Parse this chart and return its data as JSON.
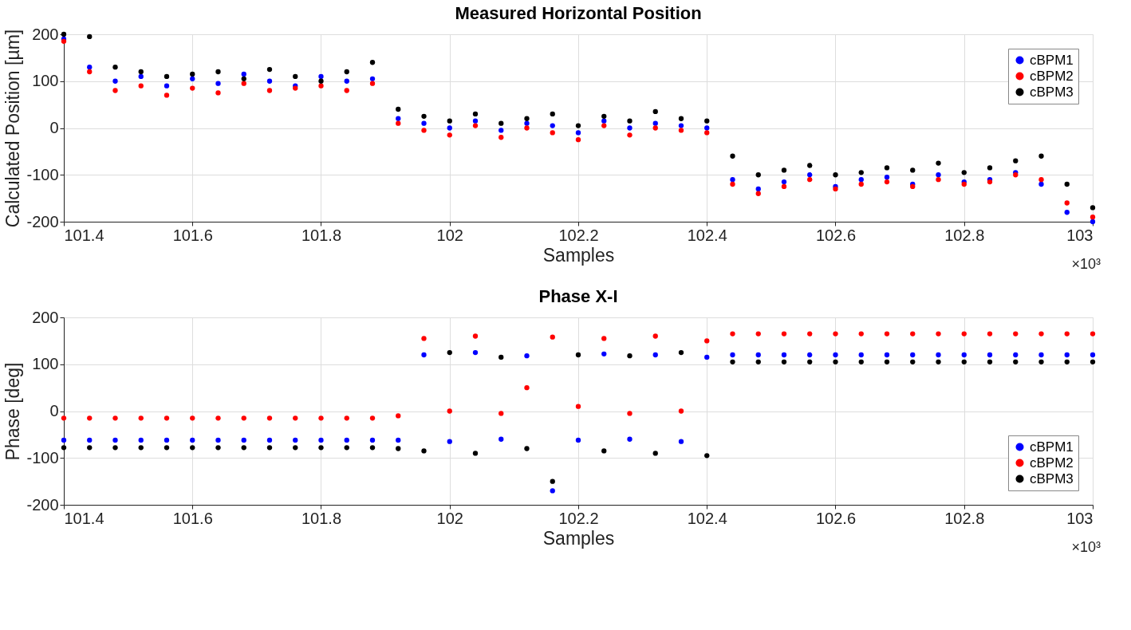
{
  "chart_data": [
    {
      "type": "scatter",
      "title": "Measured Horizontal Position",
      "xlabel": "Samples",
      "ylabel": "Calculated Position [µm]",
      "annotations": [
        "×10³"
      ],
      "x": [
        101.4,
        101.44,
        101.48,
        101.52,
        101.56,
        101.6,
        101.64,
        101.68,
        101.72,
        101.76,
        101.8,
        101.84,
        101.88,
        101.92,
        101.96,
        102,
        102.04,
        102.08,
        102.12,
        102.16,
        102.2,
        102.24,
        102.28,
        102.32,
        102.36,
        102.4,
        102.44,
        102.48,
        102.52,
        102.56,
        102.6,
        102.64,
        102.68,
        102.72,
        102.76,
        102.8,
        102.84,
        102.88,
        102.92,
        102.96,
        103
      ],
      "series": [
        {
          "name": "cBPM1",
          "color": "#0000ff",
          "values": [
            190,
            130,
            100,
            110,
            90,
            105,
            95,
            115,
            100,
            90,
            110,
            100,
            105,
            20,
            10,
            0,
            15,
            -5,
            10,
            5,
            -10,
            15,
            0,
            10,
            5,
            0,
            -110,
            -130,
            -115,
            -100,
            -125,
            -110,
            -105,
            -120,
            -100,
            -115,
            -110,
            -95,
            -120,
            -180,
            -200
          ]
        },
        {
          "name": "cBPM2",
          "color": "#ff0000",
          "values": [
            185,
            120,
            80,
            90,
            70,
            85,
            75,
            95,
            80,
            85,
            90,
            80,
            95,
            10,
            -5,
            -15,
            5,
            -20,
            0,
            -10,
            -25,
            5,
            -15,
            0,
            -5,
            -10,
            -120,
            -140,
            -125,
            -110,
            -130,
            -120,
            -115,
            -125,
            -110,
            -120,
            -115,
            -100,
            -110,
            -160,
            -190
          ]
        },
        {
          "name": "cBPM3",
          "color": "#000000",
          "values": [
            200,
            195,
            130,
            120,
            110,
            115,
            120,
            105,
            125,
            110,
            100,
            120,
            140,
            40,
            25,
            15,
            30,
            10,
            20,
            30,
            5,
            25,
            15,
            35,
            20,
            15,
            -60,
            -100,
            -90,
            -80,
            -100,
            -95,
            -85,
            -90,
            -75,
            -95,
            -85,
            -70,
            -60,
            -120,
            -170
          ]
        }
      ],
      "xlim": [
        101.4,
        103
      ],
      "xticks": [
        101.4,
        101.6,
        101.8,
        102,
        102.2,
        102.4,
        102.6,
        102.8,
        103
      ],
      "ylim": [
        -200,
        200
      ],
      "yticks": [
        -200,
        -100,
        0,
        100,
        200
      ],
      "grid": true,
      "legend": "top right",
      "marker": "circle"
    },
    {
      "type": "scatter",
      "title": "Phase X-I",
      "xlabel": "Samples",
      "ylabel": "Phase [deg]",
      "annotations": [
        "×10³"
      ],
      "x": [
        101.4,
        101.44,
        101.48,
        101.52,
        101.56,
        101.6,
        101.64,
        101.68,
        101.72,
        101.76,
        101.8,
        101.84,
        101.88,
        101.92,
        101.96,
        102,
        102.04,
        102.08,
        102.12,
        102.16,
        102.2,
        102.24,
        102.28,
        102.32,
        102.36,
        102.4,
        102.44,
        102.48,
        102.52,
        102.56,
        102.6,
        102.64,
        102.68,
        102.72,
        102.76,
        102.8,
        102.84,
        102.88,
        102.92,
        102.96,
        103
      ],
      "series": [
        {
          "name": "cBPM1",
          "color": "#0000ff",
          "values": [
            -62,
            -62,
            -62,
            -62,
            -62,
            -62,
            -62,
            -62,
            -62,
            -62,
            -62,
            -62,
            -62,
            -62,
            120,
            -65,
            125,
            -60,
            118,
            -170,
            -62,
            122,
            -60,
            120,
            -65,
            115,
            120,
            120,
            120,
            120,
            120,
            120,
            120,
            120,
            120,
            120,
            120,
            120,
            120,
            120,
            120
          ]
        },
        {
          "name": "cBPM2",
          "color": "#ff0000",
          "values": [
            -15,
            -15,
            -15,
            -15,
            -15,
            -15,
            -15,
            -15,
            -15,
            -15,
            -15,
            -15,
            -15,
            -10,
            155,
            0,
            160,
            -5,
            50,
            158,
            10,
            155,
            -5,
            160,
            0,
            150,
            165,
            165,
            165,
            165,
            165,
            165,
            165,
            165,
            165,
            165,
            165,
            165,
            165,
            165,
            165
          ]
        },
        {
          "name": "cBPM3",
          "color": "#000000",
          "values": [
            -78,
            -78,
            -78,
            -78,
            -78,
            -78,
            -78,
            -78,
            -78,
            -78,
            -78,
            -78,
            -78,
            -80,
            -85,
            125,
            -90,
            115,
            -80,
            -150,
            120,
            -85,
            118,
            -90,
            125,
            -95,
            105,
            105,
            105,
            105,
            105,
            105,
            105,
            105,
            105,
            105,
            105,
            105,
            105,
            105,
            105
          ]
        }
      ],
      "xlim": [
        101.4,
        103
      ],
      "xticks": [
        101.4,
        101.6,
        101.8,
        102,
        102.2,
        102.4,
        102.6,
        102.8,
        103
      ],
      "ylim": [
        -200,
        200
      ],
      "yticks": [
        -200,
        -100,
        0,
        100,
        200
      ],
      "grid": true,
      "legend": "bottom right",
      "marker": "circle"
    }
  ]
}
